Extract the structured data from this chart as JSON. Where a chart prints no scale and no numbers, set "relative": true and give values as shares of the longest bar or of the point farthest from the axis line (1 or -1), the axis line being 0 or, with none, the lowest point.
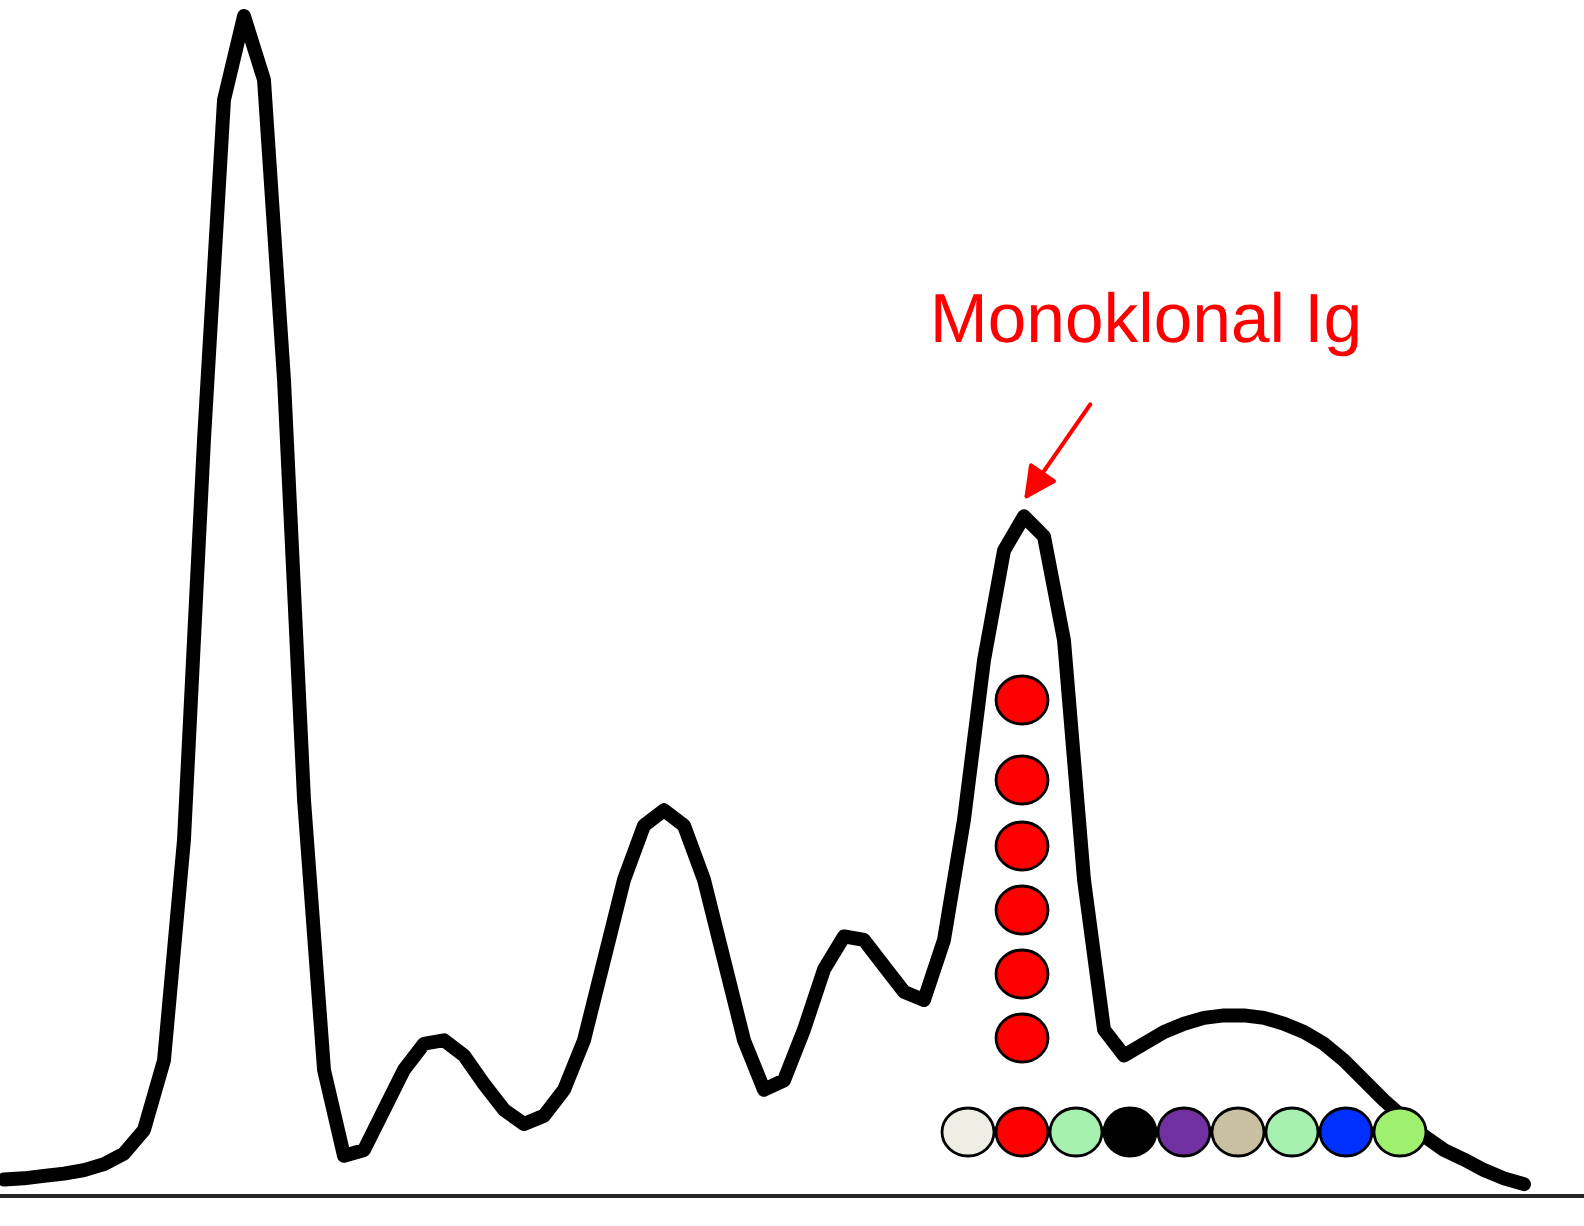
{
  "chart_data": {
    "type": "line",
    "relative": true,
    "categories": [
      null,
      null,
      null,
      null,
      null,
      null,
      null,
      null,
      null,
      null,
      null,
      null,
      null,
      null,
      null,
      null,
      null,
      null,
      null,
      null,
      null,
      null,
      null,
      null,
      null,
      null,
      null,
      null,
      null,
      null,
      null,
      null,
      null,
      null,
      null,
      null,
      null,
      null,
      null,
      null,
      null,
      null,
      null,
      null,
      null,
      null,
      null,
      null,
      null,
      null,
      null,
      null,
      null,
      null,
      null,
      null,
      null,
      null,
      null,
      null,
      null,
      null,
      null,
      null,
      null,
      null,
      null,
      null,
      null,
      null,
      null,
      null,
      null,
      null,
      null,
      null,
      null
    ],
    "series": [
      {
        "color": "#000000",
        "values": [
          0.014,
          0.015,
          0.017,
          0.019,
          0.022,
          0.027,
          0.036,
          0.056,
          0.115,
          0.302,
          0.641,
          0.929,
          1,
          0.946,
          0.692,
          0.336,
          0.107,
          0.034,
          0.039,
          0.073,
          0.107,
          0.129,
          0.132,
          0.119,
          0.095,
          0.073,
          0.061,
          0.068,
          0.09,
          0.132,
          0.2,
          0.268,
          0.314,
          0.327,
          0.314,
          0.268,
          0.2,
          0.132,
          0.09,
          0.098,
          0.141,
          0.192,
          0.22,
          0.217,
          0.195,
          0.173,
          0.166,
          0.217,
          0.319,
          0.454,
          0.547,
          0.576,
          0.559,
          0.471,
          0.268,
          0.141,
          0.119,
          0.129,
          0.139,
          0.146,
          0.151,
          0.153,
          0.153,
          0.151,
          0.146,
          0.139,
          0.129,
          0.115,
          0.098,
          0.081,
          null,
          0.051,
          0.039,
          0.031,
          0.022,
          0.015,
          0.01
        ]
      }
    ],
    "annotations": [
      "Monoklonal Ig"
    ],
    "grid": false,
    "legend": false
  }
}
